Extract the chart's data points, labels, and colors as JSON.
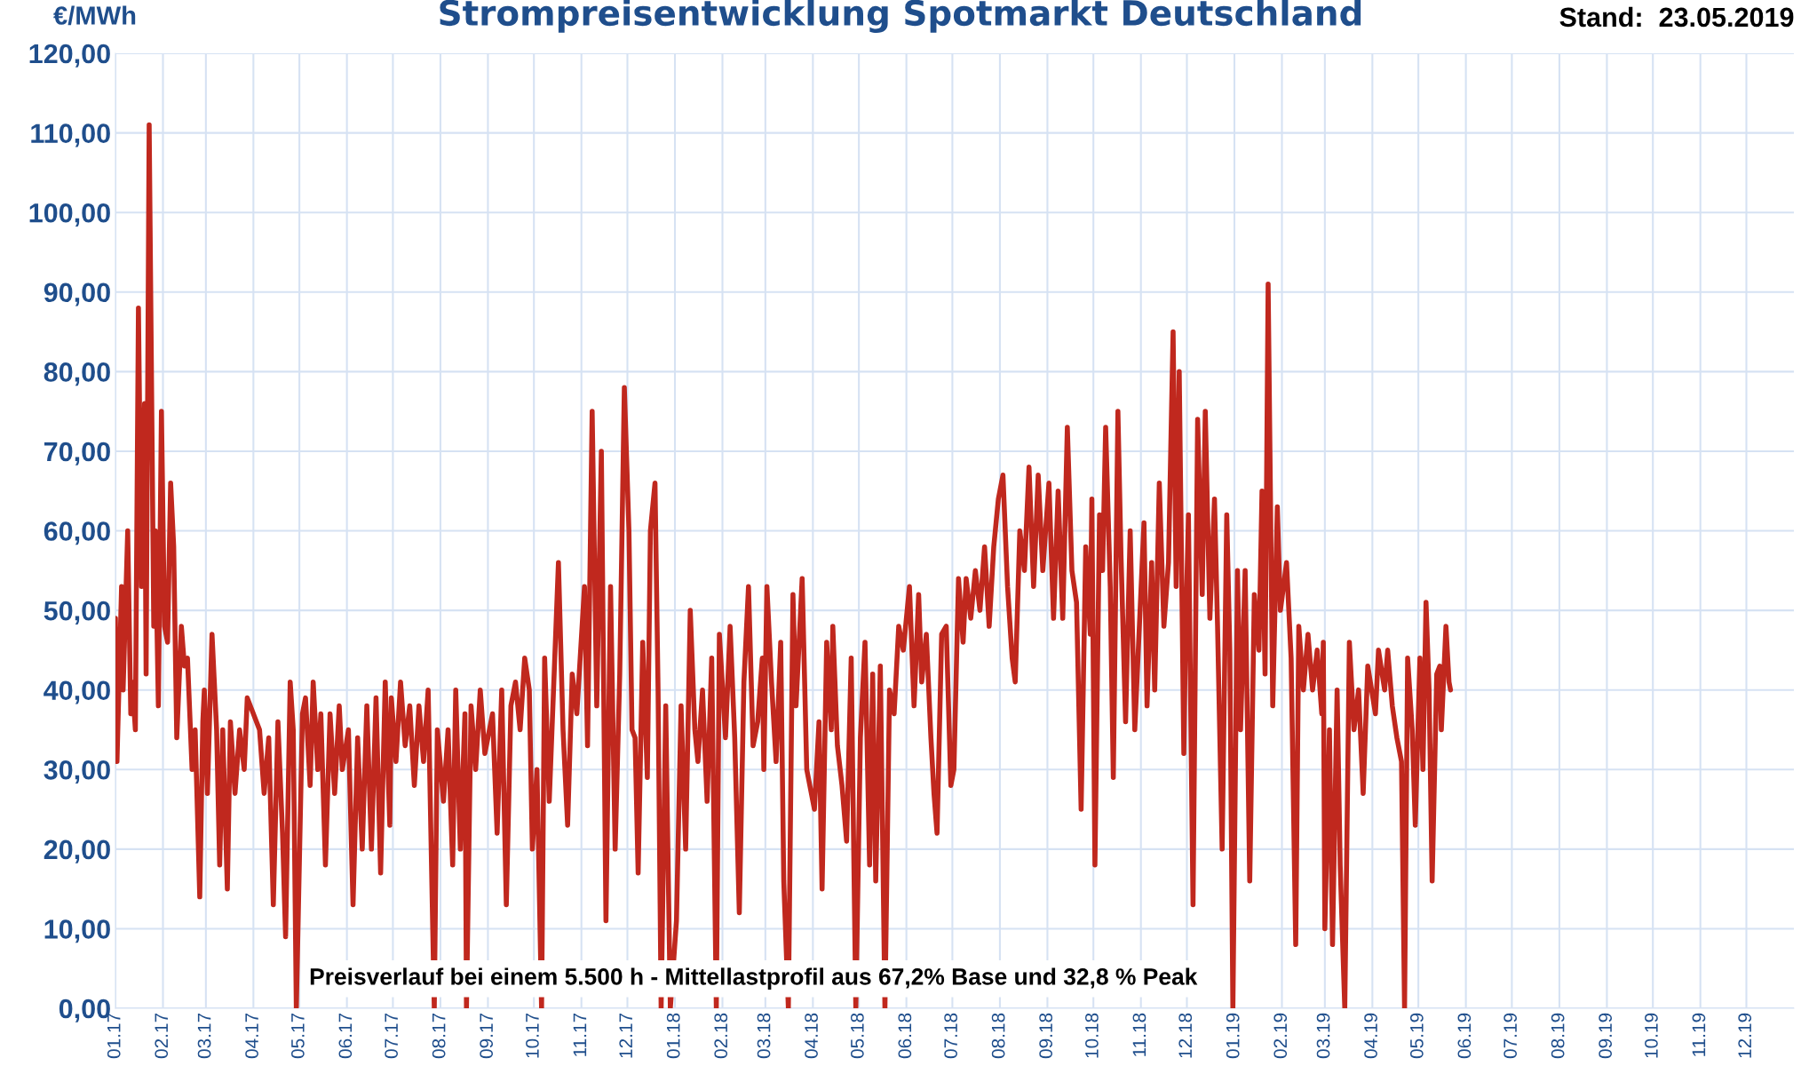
{
  "chart_data": {
    "type": "line",
    "title": "Strompreisentwicklung Spotmarkt Deutschland",
    "ylabel": "€/MWh",
    "annotations": [
      "Stand:  23.05.2019",
      "Preisverlauf bei einem 5.500 h - Mittellastprofil aus 67,2% Base und 32,8 % Peak"
    ],
    "series": [
      {
        "color": "#c0281e",
        "x": [
          "2017-01-01",
          "2017-01-02",
          "2017-01-05",
          "2017-01-06",
          "2017-01-09",
          "2017-01-11",
          "2017-01-12",
          "2017-01-14",
          "2017-01-16",
          "2017-01-18",
          "2017-01-20",
          "2017-01-21",
          "2017-01-23",
          "2017-01-26",
          "2017-01-27",
          "2017-01-29",
          "2017-01-31",
          "2017-02-02",
          "2017-02-04",
          "2017-02-06",
          "2017-02-08",
          "2017-02-10",
          "2017-02-13",
          "2017-02-15",
          "2017-02-17",
          "2017-02-20",
          "2017-02-22",
          "2017-02-25",
          "2017-02-27",
          "2017-02-28",
          "2017-03-02",
          "2017-03-05",
          "2017-03-08",
          "2017-03-10",
          "2017-03-12",
          "2017-03-15",
          "2017-03-17",
          "2017-03-20",
          "2017-03-23",
          "2017-03-26",
          "2017-03-28",
          "2017-04-05",
          "2017-04-08",
          "2017-04-11",
          "2017-04-14",
          "2017-04-17",
          "2017-04-20",
          "2017-04-22",
          "2017-04-25",
          "2017-04-27",
          "2017-04-29",
          "2017-05-03",
          "2017-05-05",
          "2017-05-08",
          "2017-05-10",
          "2017-05-13",
          "2017-05-15",
          "2017-05-18",
          "2017-05-21",
          "2017-05-24",
          "2017-05-27",
          "2017-05-29",
          "2017-06-02",
          "2017-06-05",
          "2017-06-08",
          "2017-06-11",
          "2017-06-14",
          "2017-06-17",
          "2017-06-20",
          "2017-06-23",
          "2017-06-26",
          "2017-06-29",
          "2017-06-30",
          "2017-07-03",
          "2017-07-06",
          "2017-07-09",
          "2017-07-12",
          "2017-07-15",
          "2017-07-18",
          "2017-07-21",
          "2017-07-24",
          "2017-07-28",
          "2017-07-30",
          "2017-08-03",
          "2017-08-06",
          "2017-08-09",
          "2017-08-11",
          "2017-08-14",
          "2017-08-17",
          "2017-08-18",
          "2017-08-21",
          "2017-08-24",
          "2017-08-27",
          "2017-08-30",
          "2017-09-04",
          "2017-09-07",
          "2017-09-10",
          "2017-09-13",
          "2017-09-16",
          "2017-09-19",
          "2017-09-22",
          "2017-09-25",
          "2017-09-28",
          "2017-09-30",
          "2017-10-03",
          "2017-10-06",
          "2017-10-08",
          "2017-10-11",
          "2017-10-14",
          "2017-10-17",
          "2017-10-20",
          "2017-10-23",
          "2017-10-26",
          "2017-10-29",
          "2017-11-03",
          "2017-11-05",
          "2017-11-08",
          "2017-11-11",
          "2017-11-14",
          "2017-11-17",
          "2017-11-20",
          "2017-11-23",
          "2017-11-26",
          "2017-11-29",
          "2017-12-02",
          "2017-12-04",
          "2017-12-06",
          "2017-12-08",
          "2017-12-11",
          "2017-12-14",
          "2017-12-16",
          "2017-12-19",
          "2017-12-21",
          "2017-12-23",
          "2017-12-26",
          "2017-12-29",
          "2018-01-02",
          "2018-01-05",
          "2018-01-08",
          "2018-01-11",
          "2018-01-14",
          "2018-01-16",
          "2018-01-19",
          "2018-01-22",
          "2018-01-25",
          "2018-01-28",
          "2018-01-30",
          "2018-02-03",
          "2018-02-06",
          "2018-02-09",
          "2018-02-12",
          "2018-02-15",
          "2018-02-18",
          "2018-02-21",
          "2018-02-24",
          "2018-02-27",
          "2018-02-28",
          "2018-03-02",
          "2018-03-05",
          "2018-03-08",
          "2018-03-11",
          "2018-03-13",
          "2018-03-16",
          "2018-03-19",
          "2018-03-21",
          "2018-03-25",
          "2018-03-28",
          "2018-04-02",
          "2018-04-05",
          "2018-04-07",
          "2018-04-10",
          "2018-04-13",
          "2018-04-14",
          "2018-04-17",
          "2018-04-20",
          "2018-04-23",
          "2018-04-26",
          "2018-04-29",
          "2018-05-02",
          "2018-05-05",
          "2018-05-08",
          "2018-05-10",
          "2018-05-12",
          "2018-05-15",
          "2018-05-18",
          "2018-05-21",
          "2018-05-24",
          "2018-05-27",
          "2018-05-30",
          "2018-06-03",
          "2018-06-06",
          "2018-06-09",
          "2018-06-11",
          "2018-06-14",
          "2018-06-17",
          "2018-06-19",
          "2018-06-21",
          "2018-06-24",
          "2018-06-27",
          "2018-06-30",
          "2018-07-02",
          "2018-07-05",
          "2018-07-08",
          "2018-07-10",
          "2018-07-13",
          "2018-07-16",
          "2018-07-19",
          "2018-07-22",
          "2018-07-25",
          "2018-07-28",
          "2018-07-31",
          "2018-08-03",
          "2018-08-06",
          "2018-08-09",
          "2018-08-11",
          "2018-08-14",
          "2018-08-17",
          "2018-08-20",
          "2018-08-23",
          "2018-08-26",
          "2018-08-29",
          "2018-09-02",
          "2018-09-05",
          "2018-09-08",
          "2018-09-11",
          "2018-09-14",
          "2018-09-17",
          "2018-09-20",
          "2018-09-23",
          "2018-09-26",
          "2018-09-29",
          "2018-09-30",
          "2018-10-02",
          "2018-10-05",
          "2018-10-07",
          "2018-10-09",
          "2018-10-12",
          "2018-10-14",
          "2018-10-17",
          "2018-10-19",
          "2018-10-22",
          "2018-10-25",
          "2018-10-28",
          "2018-11-03",
          "2018-11-05",
          "2018-11-08",
          "2018-11-10",
          "2018-11-13",
          "2018-11-16",
          "2018-11-19",
          "2018-11-22",
          "2018-11-24",
          "2018-11-26",
          "2018-11-29",
          "2018-11-30",
          "2018-12-02",
          "2018-12-05",
          "2018-12-08",
          "2018-12-11",
          "2018-12-13",
          "2018-12-16",
          "2018-12-19",
          "2018-12-21",
          "2018-12-24",
          "2018-12-27",
          "2018-12-29",
          "2018-12-31",
          "2019-01-03",
          "2019-01-05",
          "2019-01-08",
          "2019-01-11",
          "2019-01-14",
          "2019-01-17",
          "2019-01-19",
          "2019-01-21",
          "2019-01-23",
          "2019-01-26",
          "2019-01-29",
          "2019-01-31",
          "2019-02-04",
          "2019-02-07",
          "2019-02-10",
          "2019-02-12",
          "2019-02-15",
          "2019-02-18",
          "2019-02-21",
          "2019-02-24",
          "2019-02-27",
          "2019-02-28",
          "2019-03-01",
          "2019-03-04",
          "2019-03-06",
          "2019-03-09",
          "2019-03-11",
          "2019-03-14",
          "2019-03-17",
          "2019-03-20",
          "2019-03-23",
          "2019-03-26",
          "2019-03-29",
          "2019-04-03",
          "2019-04-05",
          "2019-04-09",
          "2019-04-11",
          "2019-04-14",
          "2019-04-17",
          "2019-04-20",
          "2019-04-22",
          "2019-04-24",
          "2019-04-27",
          "2019-04-29",
          "2019-05-02",
          "2019-05-04",
          "2019-05-06",
          "2019-05-08",
          "2019-05-10",
          "2019-05-13",
          "2019-05-15",
          "2019-05-16",
          "2019-05-19",
          "2019-05-21",
          "2019-05-22"
        ],
        "values": [
          49,
          31,
          53,
          40,
          60,
          37,
          41,
          35,
          88,
          53,
          76,
          42,
          111,
          48,
          60,
          38,
          75,
          48,
          46,
          66,
          58,
          34,
          48,
          43,
          44,
          30,
          35,
          14,
          36,
          40,
          27,
          47,
          35,
          18,
          35,
          15,
          36,
          27,
          35,
          30,
          39,
          35,
          27,
          34,
          13,
          36,
          22,
          9,
          41,
          35,
          0,
          37,
          39,
          28,
          41,
          30,
          37,
          18,
          37,
          27,
          38,
          30,
          35,
          13,
          34,
          20,
          38,
          20,
          39,
          17,
          41,
          23,
          39,
          31,
          41,
          33,
          38,
          28,
          38,
          31,
          40,
          0,
          35,
          26,
          35,
          18,
          40,
          20,
          37,
          0,
          38,
          30,
          40,
          32,
          37,
          22,
          40,
          13,
          38,
          41,
          35,
          44,
          40,
          20,
          30,
          0,
          44,
          26,
          41,
          56,
          35,
          23,
          42,
          37,
          53,
          33,
          75,
          38,
          70,
          11,
          53,
          20,
          42,
          78,
          60,
          35,
          34,
          17,
          46,
          29,
          60,
          66,
          40,
          0,
          38,
          0,
          11,
          38,
          20,
          50,
          35,
          31,
          40,
          26,
          44,
          0,
          47,
          34,
          48,
          34,
          12,
          41,
          53,
          33,
          36,
          44,
          30,
          53,
          41,
          31,
          46,
          16,
          0,
          52,
          38,
          54,
          30,
          25,
          36,
          15,
          46,
          35,
          48,
          33,
          28,
          21,
          44,
          0,
          34,
          46,
          18,
          42,
          16,
          43,
          0,
          40,
          37,
          48,
          45,
          53,
          38,
          52,
          41,
          47,
          34,
          27,
          22,
          47,
          48,
          28,
          30,
          54,
          46,
          54,
          49,
          55,
          50,
          58,
          48,
          58,
          64,
          67,
          53,
          44,
          41,
          60,
          55,
          68,
          53,
          67,
          55,
          66,
          49,
          65,
          49,
          73,
          55,
          51,
          25,
          58,
          47,
          64,
          18,
          62,
          55,
          73,
          53,
          29,
          75,
          57,
          36,
          60,
          35,
          61,
          38,
          56,
          40,
          66,
          48,
          56,
          85,
          53,
          80,
          32,
          45,
          62,
          13,
          74,
          52,
          75,
          49,
          64,
          48,
          20,
          62,
          45,
          0,
          55,
          35,
          55,
          16,
          52,
          45,
          65,
          42,
          91,
          38,
          63,
          50,
          56,
          44,
          8,
          48,
          40,
          47,
          40,
          45,
          37,
          46,
          10,
          35,
          8,
          40,
          18,
          0,
          46,
          35,
          40,
          27,
          43,
          37,
          45,
          40,
          45,
          38,
          34,
          31,
          0,
          44,
          35,
          23,
          44,
          30,
          51,
          40,
          16,
          42,
          43,
          35,
          48,
          41,
          40
        ]
      }
    ],
    "xlim": [
      "2017-01-01",
      "2020-01-01"
    ],
    "xticks": [
      {
        "value": "2017-01-01",
        "label": "01.17"
      },
      {
        "value": "2017-02-01",
        "label": "02.17"
      },
      {
        "value": "2017-03-01",
        "label": "03.17"
      },
      {
        "value": "2017-04-01",
        "label": "04.17"
      },
      {
        "value": "2017-05-01",
        "label": "05.17"
      },
      {
        "value": "2017-06-01",
        "label": "06.17"
      },
      {
        "value": "2017-07-01",
        "label": "07.17"
      },
      {
        "value": "2017-08-01",
        "label": "08.17"
      },
      {
        "value": "2017-09-01",
        "label": "09.17"
      },
      {
        "value": "2017-10-01",
        "label": "10.17"
      },
      {
        "value": "2017-11-01",
        "label": "11.17"
      },
      {
        "value": "2017-12-01",
        "label": "12.17"
      },
      {
        "value": "2018-01-01",
        "label": "01.18"
      },
      {
        "value": "2018-02-01",
        "label": "02.18"
      },
      {
        "value": "2018-03-01",
        "label": "03.18"
      },
      {
        "value": "2018-04-01",
        "label": "04.18"
      },
      {
        "value": "2018-05-01",
        "label": "05.18"
      },
      {
        "value": "2018-06-01",
        "label": "06.18"
      },
      {
        "value": "2018-07-01",
        "label": "07.18"
      },
      {
        "value": "2018-08-01",
        "label": "08.18"
      },
      {
        "value": "2018-09-01",
        "label": "09.18"
      },
      {
        "value": "2018-10-01",
        "label": "10.18"
      },
      {
        "value": "2018-11-01",
        "label": "11.18"
      },
      {
        "value": "2018-12-01",
        "label": "12.18"
      },
      {
        "value": "2019-01-01",
        "label": "01.19"
      },
      {
        "value": "2019-02-01",
        "label": "02.19"
      },
      {
        "value": "2019-03-01",
        "label": "03.19"
      },
      {
        "value": "2019-04-01",
        "label": "04.19"
      },
      {
        "value": "2019-05-01",
        "label": "05.19"
      },
      {
        "value": "2019-06-01",
        "label": "06.19"
      },
      {
        "value": "2019-07-01",
        "label": "07.19"
      },
      {
        "value": "2019-08-01",
        "label": "08.19"
      },
      {
        "value": "2019-09-01",
        "label": "09.19"
      },
      {
        "value": "2019-10-01",
        "label": "10.19"
      },
      {
        "value": "2019-11-01",
        "label": "11.19"
      },
      {
        "value": "2019-12-01",
        "label": "12.19"
      }
    ],
    "ylim": [
      0,
      120
    ],
    "yticks": [
      {
        "value": 0,
        "label": "0,00"
      },
      {
        "value": 10,
        "label": "10,00"
      },
      {
        "value": 20,
        "label": "20,00"
      },
      {
        "value": 30,
        "label": "30,00"
      },
      {
        "value": 40,
        "label": "40,00"
      },
      {
        "value": 50,
        "label": "50,00"
      },
      {
        "value": 60,
        "label": "60,00"
      },
      {
        "value": 70,
        "label": "70,00"
      },
      {
        "value": 80,
        "label": "80,00"
      },
      {
        "value": 90,
        "label": "90,00"
      },
      {
        "value": 100,
        "label": "100,00"
      },
      {
        "value": 110,
        "label": "110,00"
      },
      {
        "value": 120,
        "label": "120,00"
      }
    ],
    "grid": true,
    "marker": "none",
    "line_style": "solid"
  }
}
